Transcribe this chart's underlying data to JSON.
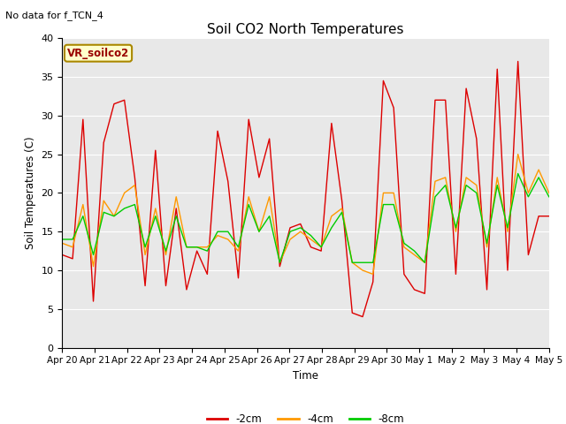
{
  "title": "Soil CO2 North Temperatures",
  "top_left_text": "No data for f_TCN_4",
  "ylabel": "Soil Temperatures (C)",
  "xlabel": "Time",
  "ylim": [
    0,
    40
  ],
  "fig_bg_color": "#ffffff",
  "plot_bg_color": "#e8e8e8",
  "vr_label": "VR_soilco2",
  "xtick_labels": [
    "Apr 20",
    "Apr 21",
    "Apr 22",
    "Apr 23",
    "Apr 24",
    "Apr 25",
    "Apr 26",
    "Apr 27",
    "Apr 28",
    "Apr 29",
    "Apr 30",
    "May 1",
    "May 2",
    "May 3",
    "May 4",
    "May 5"
  ],
  "series": {
    "2cm": {
      "color": "#dd0000",
      "label": "-2cm",
      "values": [
        12,
        11.5,
        29.5,
        6,
        26.5,
        31.5,
        32,
        22,
        8,
        25.5,
        8,
        18,
        7.5,
        12.5,
        9.5,
        28,
        21.5,
        9,
        29.5,
        22,
        27,
        10.5,
        15.5,
        16,
        13,
        12.5,
        29,
        19,
        4.5,
        4,
        8.5,
        34.5,
        31,
        9.5,
        7.5,
        7,
        32,
        32,
        9.5,
        33.5,
        27,
        7.5,
        36,
        10,
        37,
        12,
        17,
        17
      ]
    },
    "4cm": {
      "color": "#ff9900",
      "label": "-4cm",
      "values": [
        13.5,
        13,
        18.5,
        10.5,
        19,
        17,
        20,
        21,
        12,
        18,
        12,
        19.5,
        13,
        13,
        13,
        14.5,
        14,
        12.5,
        19.5,
        15,
        19.5,
        11,
        14,
        15,
        14,
        13,
        17,
        18,
        11,
        10,
        9.5,
        20,
        20,
        13,
        12,
        11,
        21.5,
        22,
        15,
        22,
        21,
        13,
        22,
        15,
        25,
        20,
        23,
        20
      ]
    },
    "8cm": {
      "color": "#00cc00",
      "label": "-8cm",
      "values": [
        14,
        14,
        17,
        12,
        17.5,
        17,
        18,
        18.5,
        13,
        17,
        12.5,
        17,
        13,
        13,
        12.5,
        15,
        15,
        13,
        18.5,
        15,
        17,
        11,
        15,
        15.5,
        14.5,
        13,
        15.5,
        17.5,
        11,
        11,
        11,
        18.5,
        18.5,
        13.5,
        12.5,
        11,
        19.5,
        21,
        15.5,
        21,
        20,
        13.5,
        21,
        15.5,
        22.5,
        19.5,
        22,
        19.5
      ]
    }
  },
  "n_points": 48,
  "x_start": 0,
  "x_end": 15,
  "xtick_positions": [
    0,
    1,
    2,
    3,
    4,
    5,
    6,
    7,
    8,
    9,
    10,
    11,
    12,
    13,
    14,
    15
  ]
}
